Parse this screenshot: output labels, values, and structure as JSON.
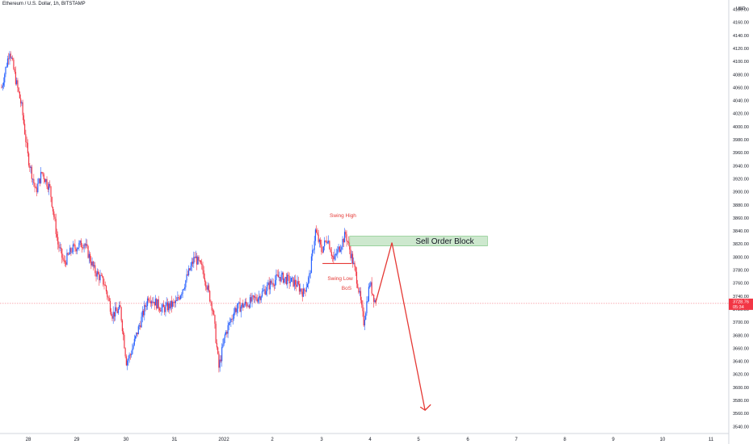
{
  "header": {
    "title": "Ethereum / U.S. Dollar, 1h, BITSTAMP",
    "currency": "USD"
  },
  "chart_data": {
    "type": "candlestick",
    "symbol": "Ethereum / U.S. Dollar",
    "interval": "1h",
    "exchange": "BITSTAMP",
    "currency": "USD",
    "ylim": [
      3535,
      4185
    ],
    "y_ticks": [
      3540,
      3560,
      3580,
      3600,
      3620,
      3640,
      3660,
      3680,
      3700,
      3720,
      3740,
      3760,
      3780,
      3800,
      3820,
      3840,
      3860,
      3880,
      3900,
      3920,
      3940,
      3960,
      3980,
      4000,
      4020,
      4040,
      4060,
      4080,
      4100,
      4120,
      4140,
      4160,
      4180
    ],
    "y_tick_labels": [
      "3540.00",
      "3560.00",
      "3580.00",
      "3600.00",
      "3620.00",
      "3640.00",
      "3660.00",
      "3680.00",
      "3700.00",
      "3720.00",
      "3740.00",
      "3760.00",
      "3780.00",
      "3800.00",
      "3820.00",
      "3840.00",
      "3860.00",
      "3880.00",
      "3900.00",
      "3920.00",
      "3940.00",
      "3960.00",
      "3980.00",
      "4000.00",
      "4020.00",
      "4040.00",
      "4060.00",
      "4080.00",
      "4100.00",
      "4120.00",
      "4140.00",
      "4160.00",
      "4180.00"
    ],
    "x_labels": [
      "28",
      "29",
      "30",
      "31",
      "2022",
      "2",
      "3",
      "4",
      "5",
      "6",
      "7",
      "8",
      "9",
      "10",
      "11"
    ],
    "current_price": "3728.76",
    "countdown": "05:34",
    "colors": {
      "up": "#2962ff",
      "down": "#f23645",
      "annotation": "#e53935",
      "zone_fill": "#c8e6c9",
      "zone_stroke": "#66bb6a"
    },
    "grid": false,
    "anchors": [
      {
        "t": 0,
        "p": 4060
      },
      {
        "t": 8,
        "p": 4118
      },
      {
        "t": 14,
        "p": 4072
      },
      {
        "t": 20,
        "p": 4030
      },
      {
        "t": 26,
        "p": 3955
      },
      {
        "t": 34,
        "p": 3900
      },
      {
        "t": 40,
        "p": 3930
      },
      {
        "t": 48,
        "p": 3905
      },
      {
        "t": 56,
        "p": 3820
      },
      {
        "t": 62,
        "p": 3790
      },
      {
        "t": 70,
        "p": 3812
      },
      {
        "t": 82,
        "p": 3822
      },
      {
        "t": 92,
        "p": 3780
      },
      {
        "t": 102,
        "p": 3760
      },
      {
        "t": 110,
        "p": 3712
      },
      {
        "t": 118,
        "p": 3720
      },
      {
        "t": 124,
        "p": 3640
      },
      {
        "t": 128,
        "p": 3650
      },
      {
        "t": 138,
        "p": 3700
      },
      {
        "t": 146,
        "p": 3740
      },
      {
        "t": 160,
        "p": 3720
      },
      {
        "t": 174,
        "p": 3730
      },
      {
        "t": 182,
        "p": 3760
      },
      {
        "t": 192,
        "p": 3800
      },
      {
        "t": 200,
        "p": 3780
      },
      {
        "t": 210,
        "p": 3720
      },
      {
        "t": 216,
        "p": 3630
      },
      {
        "t": 222,
        "p": 3680
      },
      {
        "t": 232,
        "p": 3720
      },
      {
        "t": 246,
        "p": 3730
      },
      {
        "t": 256,
        "p": 3740
      },
      {
        "t": 268,
        "p": 3760
      },
      {
        "t": 276,
        "p": 3770
      },
      {
        "t": 292,
        "p": 3760
      },
      {
        "t": 300,
        "p": 3745
      },
      {
        "t": 306,
        "p": 3770
      },
      {
        "t": 312,
        "p": 3840
      },
      {
        "t": 318,
        "p": 3810
      },
      {
        "t": 324,
        "p": 3830
      },
      {
        "t": 330,
        "p": 3795
      },
      {
        "t": 336,
        "p": 3815
      },
      {
        "t": 342,
        "p": 3835
      },
      {
        "t": 348,
        "p": 3800
      },
      {
        "t": 354,
        "p": 3760
      },
      {
        "t": 360,
        "p": 3700
      },
      {
        "t": 366,
        "p": 3760
      },
      {
        "t": 372,
        "p": 3728
      }
    ],
    "annotations": [
      {
        "id": "swing-high",
        "text": "Swing High",
        "price": 3860,
        "time": 339
      },
      {
        "id": "swing-low",
        "text": "Swing Low",
        "price": 3767,
        "time": 336
      },
      {
        "id": "bos",
        "text": "BoS",
        "price": 3752,
        "time": 342
      },
      {
        "id": "sell-order-block",
        "text": "Sell Order Block",
        "price_top": 3832,
        "price_bottom": 3817,
        "time_start": 346,
        "time_end": 483
      },
      {
        "id": "projection",
        "points": [
          {
            "time": 372,
            "price": 3731
          },
          {
            "time": 388,
            "price": 3822
          },
          {
            "time": 421,
            "price": 3565
          }
        ]
      }
    ]
  }
}
